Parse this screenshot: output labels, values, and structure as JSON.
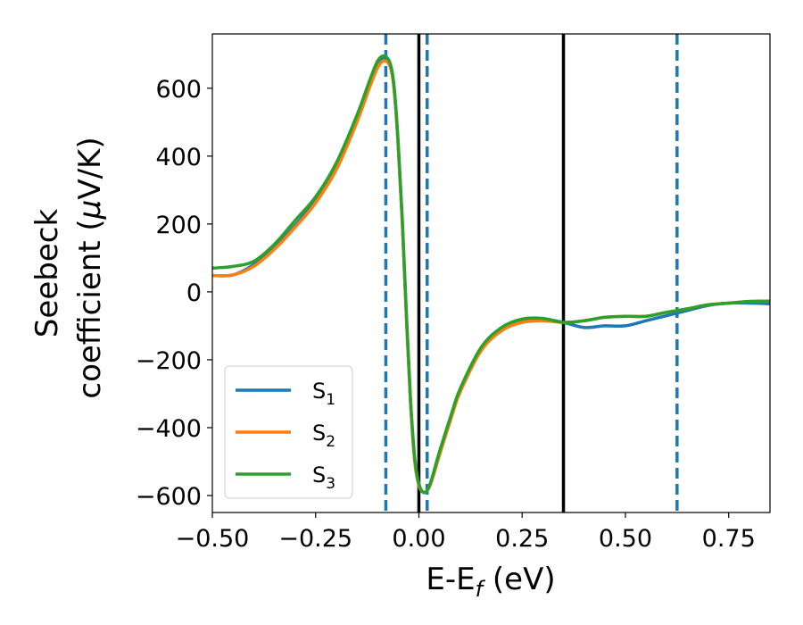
{
  "chart_data": {
    "type": "line",
    "xlabel": {
      "main": "E-E",
      "sub": "f",
      "unit": " (eV)"
    },
    "ylabel": {
      "line1": "Seebeck",
      "line2": "coefficient  (",
      "mu": "μ",
      "unit": "V/K)"
    },
    "xlim": [
      -0.5,
      0.85
    ],
    "ylim": [
      -650,
      760
    ],
    "xticks": [
      -0.5,
      -0.25,
      0.0,
      0.25,
      0.5,
      0.75
    ],
    "xtick_labels": [
      "−0.50",
      "−0.25",
      "0.00",
      "0.25",
      "0.50",
      "0.75"
    ],
    "yticks": [
      -600,
      -400,
      -200,
      0,
      200,
      400,
      600
    ],
    "ytick_labels": [
      "−600",
      "−400",
      "−200",
      "0",
      "200",
      "400",
      "600"
    ],
    "grid": false,
    "legend_position": "bottom-left",
    "vertical_lines": [
      {
        "x": -0.08,
        "style": "dashed",
        "color": "#1f77b4"
      },
      {
        "x": 0.0,
        "style": "solid",
        "color": "#000000"
      },
      {
        "x": 0.02,
        "style": "dashed",
        "color": "#1f77b4"
      },
      {
        "x": 0.35,
        "style": "solid",
        "color": "#000000"
      },
      {
        "x": 0.625,
        "style": "dashed",
        "color": "#1f77b4"
      }
    ],
    "series": [
      {
        "name": "S",
        "sub": "1",
        "color": "#1f77b4",
        "x": [
          -0.5,
          -0.45,
          -0.4,
          -0.35,
          -0.3,
          -0.25,
          -0.2,
          -0.15,
          -0.12,
          -0.1,
          -0.085,
          -0.07,
          -0.06,
          -0.05,
          -0.04,
          -0.03,
          -0.02,
          -0.01,
          0.0,
          0.01,
          0.02,
          0.03,
          0.05,
          0.08,
          0.1,
          0.15,
          0.2,
          0.25,
          0.3,
          0.35,
          0.4,
          0.45,
          0.5,
          0.55,
          0.6,
          0.65,
          0.7,
          0.75,
          0.8,
          0.85
        ],
        "y": [
          48,
          50,
          80,
          130,
          195,
          270,
          370,
          510,
          610,
          670,
          690,
          670,
          600,
          430,
          200,
          -80,
          -330,
          -500,
          -570,
          -590,
          -585,
          -560,
          -480,
          -360,
          -290,
          -170,
          -110,
          -85,
          -80,
          -90,
          -105,
          -100,
          -100,
          -85,
          -70,
          -55,
          -40,
          -33,
          -33,
          -35
        ]
      },
      {
        "name": "S",
        "sub": "2",
        "color": "#ff7f0e",
        "x": [
          -0.5,
          -0.45,
          -0.4,
          -0.35,
          -0.3,
          -0.25,
          -0.2,
          -0.15,
          -0.12,
          -0.1,
          -0.085,
          -0.07,
          -0.06,
          -0.05,
          -0.04,
          -0.03,
          -0.02,
          -0.01,
          0.0,
          0.01,
          0.02,
          0.03,
          0.05,
          0.08,
          0.1,
          0.15,
          0.2,
          0.25,
          0.3,
          0.35,
          0.4,
          0.45,
          0.5,
          0.55,
          0.6,
          0.65,
          0.7,
          0.75,
          0.8,
          0.85
        ],
        "y": [
          48,
          50,
          75,
          125,
          190,
          262,
          360,
          500,
          600,
          660,
          680,
          665,
          595,
          430,
          200,
          -80,
          -330,
          -500,
          -570,
          -590,
          -585,
          -560,
          -480,
          -365,
          -295,
          -175,
          -115,
          -90,
          -85,
          -90,
          -85,
          -75,
          -72,
          -72,
          -60,
          -50,
          -38,
          -33,
          -28,
          -27
        ]
      },
      {
        "name": "S",
        "sub": "3",
        "color": "#2ca02c",
        "x": [
          -0.5,
          -0.45,
          -0.4,
          -0.35,
          -0.3,
          -0.25,
          -0.2,
          -0.15,
          -0.12,
          -0.1,
          -0.085,
          -0.07,
          -0.06,
          -0.05,
          -0.04,
          -0.03,
          -0.02,
          -0.01,
          0.0,
          0.01,
          0.02,
          0.03,
          0.05,
          0.08,
          0.1,
          0.15,
          0.2,
          0.25,
          0.3,
          0.35,
          0.4,
          0.45,
          0.5,
          0.55,
          0.6,
          0.65,
          0.7,
          0.75,
          0.8,
          0.85
        ],
        "y": [
          70,
          75,
          90,
          140,
          210,
          280,
          380,
          520,
          620,
          680,
          695,
          675,
          605,
          440,
          210,
          -70,
          -320,
          -490,
          -565,
          -590,
          -585,
          -555,
          -470,
          -355,
          -285,
          -165,
          -105,
          -80,
          -78,
          -90,
          -85,
          -75,
          -72,
          -72,
          -60,
          -50,
          -38,
          -33,
          -28,
          -27
        ]
      }
    ]
  }
}
